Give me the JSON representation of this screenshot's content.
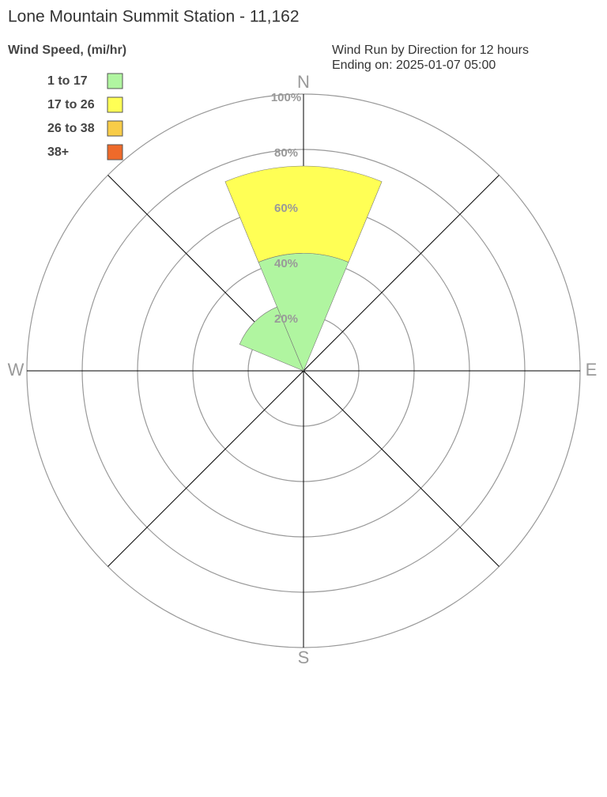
{
  "chart_data": {
    "type": "windrose",
    "title": "Lone Mountain Summit Station - 11,162",
    "legend_title": "Wind Speed, (mi/hr)",
    "subtitle": [
      "Wind Run by Direction for 12 hours",
      "Ending on: 2025-01-07 05:00"
    ],
    "categories": [
      "N",
      null,
      "E",
      null,
      "S",
      null,
      "W",
      null
    ],
    "series": [
      {
        "name": "1 to 17",
        "color": "#b0f5a0",
        "values": [
          42.5,
          0,
          0,
          0,
          0,
          0,
          0,
          25
        ]
      },
      {
        "name": "17 to 26",
        "color": "#ffff55",
        "values": [
          31.5,
          0,
          0,
          0,
          0,
          0,
          0,
          0
        ]
      },
      {
        "name": "26 to 38",
        "color": "#f8cc48",
        "values": [
          0,
          0,
          0,
          0,
          0,
          0,
          0,
          0
        ]
      },
      {
        "name": "38+",
        "color": "#ee6a2a",
        "values": [
          0,
          0,
          0,
          0,
          0,
          0,
          0,
          0
        ]
      }
    ],
    "rlim": [
      0,
      100
    ],
    "rticks": [
      {
        "value": 20,
        "label": "20%"
      },
      {
        "value": 40,
        "label": "40%"
      },
      {
        "value": 60,
        "label": "60%"
      },
      {
        "value": 80,
        "label": "80%"
      },
      {
        "value": 100,
        "label": "100%"
      }
    ]
  }
}
